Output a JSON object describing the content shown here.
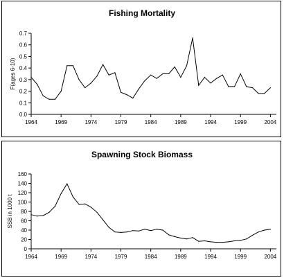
{
  "chart_data": [
    {
      "type": "line",
      "title": "Fishing Mortality",
      "ylabel": "F(ages 6-10)",
      "xlabel": "",
      "ylim": [
        0,
        0.7
      ],
      "xlim": [
        1964,
        2005
      ],
      "yticks": [
        "0.0",
        "0.1",
        "0.2",
        "0.3",
        "0.4",
        "0.5",
        "0.6",
        "0.7"
      ],
      "xticks": [
        "1964",
        "1969",
        "1974",
        "1979",
        "1984",
        "1989",
        "1994",
        "1999",
        "2004"
      ],
      "grid": false,
      "series": [
        {
          "color": "#000000",
          "x": [
            1964,
            1965,
            1966,
            1967,
            1968,
            1969,
            1970,
            1971,
            1972,
            1973,
            1974,
            1975,
            1976,
            1977,
            1978,
            1979,
            1980,
            1981,
            1982,
            1983,
            1984,
            1985,
            1986,
            1987,
            1988,
            1989,
            1990,
            1991,
            1992,
            1993,
            1994,
            1995,
            1996,
            1997,
            1998,
            1999,
            2000,
            2001,
            2002,
            2003,
            2004
          ],
          "y": [
            0.32,
            0.26,
            0.16,
            0.13,
            0.13,
            0.2,
            0.42,
            0.42,
            0.3,
            0.23,
            0.27,
            0.33,
            0.43,
            0.34,
            0.36,
            0.19,
            0.17,
            0.14,
            0.22,
            0.29,
            0.34,
            0.31,
            0.35,
            0.35,
            0.41,
            0.32,
            0.42,
            0.66,
            0.25,
            0.32,
            0.27,
            0.31,
            0.34,
            0.24,
            0.24,
            0.35,
            0.24,
            0.23,
            0.18,
            0.18,
            0.23
          ]
        }
      ]
    },
    {
      "type": "line",
      "title": "Spawning Stock Biomass",
      "ylabel": "SSB in 1000 t",
      "xlabel": "",
      "ylim": [
        0,
        160
      ],
      "xlim": [
        1964,
        2005
      ],
      "yticks": [
        "0",
        "20",
        "40",
        "60",
        "80",
        "100",
        "120",
        "140",
        "160"
      ],
      "xticks": [
        "1964",
        "1969",
        "1974",
        "1979",
        "1984",
        "1989",
        "1994",
        "1999",
        "2004"
      ],
      "grid": false,
      "series": [
        {
          "color": "#000000",
          "x": [
            1964,
            1965,
            1966,
            1967,
            1968,
            1969,
            1970,
            1971,
            1972,
            1973,
            1974,
            1975,
            1976,
            1977,
            1978,
            1979,
            1980,
            1981,
            1982,
            1983,
            1984,
            1985,
            1986,
            1987,
            1988,
            1989,
            1990,
            1991,
            1992,
            1993,
            1994,
            1995,
            1996,
            1997,
            1998,
            1999,
            2000,
            2001,
            2002,
            2003,
            2004
          ],
          "y": [
            73,
            70,
            71,
            78,
            91,
            118,
            139,
            111,
            95,
            96,
            89,
            78,
            62,
            46,
            36,
            35,
            36,
            39,
            38,
            42,
            39,
            42,
            40,
            30,
            26,
            23,
            21,
            24,
            16,
            17,
            15,
            14,
            14,
            15,
            17,
            18,
            21,
            29,
            36,
            40,
            42
          ]
        }
      ]
    }
  ]
}
